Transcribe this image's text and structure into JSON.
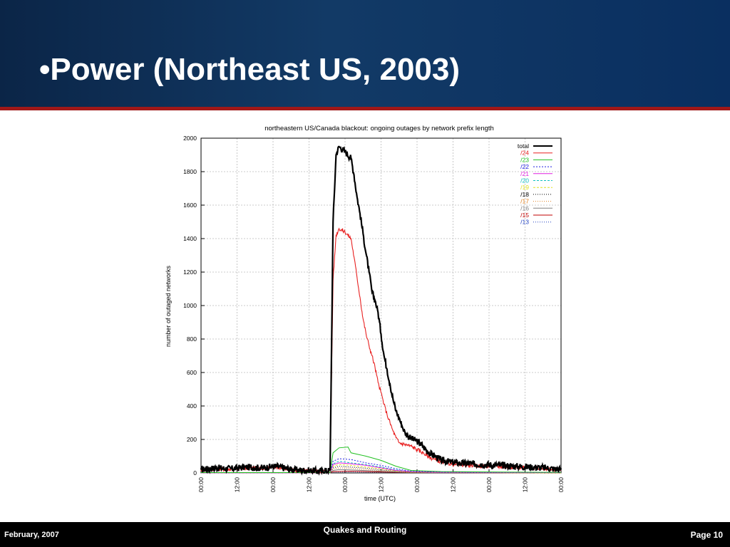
{
  "slide": {
    "title": "•Power (Northeast US, 2003)"
  },
  "footer": {
    "date": "February, 2007",
    "center": "Quakes and Routing",
    "page": "Page 10"
  },
  "chart_data": {
    "type": "line",
    "title": "northeastern US/Canada blackout: ongoing outages by network prefix length",
    "xlabel": "time (UTC)",
    "ylabel": "number of outaged networks",
    "x_ticks": [
      "00:00",
      "12:00",
      "00:00",
      "12:00",
      "00:00",
      "12:00",
      "00:00",
      "12:00",
      "00:00",
      "12:00",
      "00:00"
    ],
    "y_ticks": [
      0,
      200,
      400,
      600,
      800,
      1000,
      1200,
      1400,
      1600,
      1800,
      2000
    ],
    "xlim": [
      0,
      120
    ],
    "ylim": [
      0,
      2000
    ],
    "x_unit": "hours since first 00:00 tick",
    "grid": true,
    "legend_position": "top-right",
    "series": [
      {
        "name": "total",
        "color": "#000000",
        "dash": "",
        "width": 2.2,
        "points": [
          [
            0,
            20
          ],
          [
            5,
            30
          ],
          [
            10,
            25
          ],
          [
            15,
            35
          ],
          [
            20,
            30
          ],
          [
            25,
            40
          ],
          [
            30,
            20
          ],
          [
            35,
            15
          ],
          [
            40,
            10
          ],
          [
            43,
            15
          ],
          [
            44,
            1500
          ],
          [
            45,
            1900
          ],
          [
            46,
            1950
          ],
          [
            48,
            1920
          ],
          [
            50,
            1880
          ],
          [
            51,
            1780
          ],
          [
            52,
            1650
          ],
          [
            53,
            1550
          ],
          [
            54,
            1430
          ],
          [
            55,
            1310
          ],
          [
            56,
            1200
          ],
          [
            57,
            1080
          ],
          [
            58,
            1030
          ],
          [
            59,
            960
          ],
          [
            60,
            830
          ],
          [
            61,
            700
          ],
          [
            62,
            620
          ],
          [
            63,
            530
          ],
          [
            64,
            440
          ],
          [
            65,
            370
          ],
          [
            66,
            330
          ],
          [
            67,
            280
          ],
          [
            68,
            240
          ],
          [
            69,
            220
          ],
          [
            70,
            205
          ],
          [
            72,
            190
          ],
          [
            74,
            160
          ],
          [
            76,
            120
          ],
          [
            78,
            100
          ],
          [
            80,
            75
          ],
          [
            85,
            60
          ],
          [
            90,
            55
          ],
          [
            95,
            50
          ],
          [
            100,
            45
          ],
          [
            105,
            40
          ],
          [
            110,
            35
          ],
          [
            115,
            30
          ],
          [
            120,
            20
          ]
        ]
      },
      {
        "name": "/24",
        "color": "#e82020",
        "dash": "",
        "width": 1.1,
        "points": [
          [
            0,
            18
          ],
          [
            5,
            25
          ],
          [
            10,
            22
          ],
          [
            15,
            30
          ],
          [
            20,
            28
          ],
          [
            25,
            35
          ],
          [
            30,
            18
          ],
          [
            35,
            12
          ],
          [
            40,
            8
          ],
          [
            43,
            12
          ],
          [
            44,
            1150
          ],
          [
            45,
            1420
          ],
          [
            46,
            1460
          ],
          [
            48,
            1440
          ],
          [
            50,
            1400
          ],
          [
            51,
            1290
          ],
          [
            52,
            1170
          ],
          [
            53,
            1050
          ],
          [
            54,
            920
          ],
          [
            55,
            830
          ],
          [
            56,
            760
          ],
          [
            57,
            700
          ],
          [
            58,
            630
          ],
          [
            59,
            540
          ],
          [
            60,
            480
          ],
          [
            61,
            410
          ],
          [
            62,
            350
          ],
          [
            63,
            300
          ],
          [
            64,
            250
          ],
          [
            65,
            210
          ],
          [
            66,
            180
          ],
          [
            68,
            170
          ],
          [
            70,
            160
          ],
          [
            72,
            140
          ],
          [
            74,
            120
          ],
          [
            76,
            95
          ],
          [
            78,
            80
          ],
          [
            80,
            65
          ],
          [
            85,
            50
          ],
          [
            90,
            45
          ],
          [
            95,
            40
          ],
          [
            100,
            38
          ],
          [
            105,
            35
          ],
          [
            110,
            30
          ],
          [
            115,
            25
          ],
          [
            120,
            18
          ]
        ]
      },
      {
        "name": "/23",
        "color": "#20c020",
        "dash": "",
        "width": 1,
        "points": [
          [
            0,
            2
          ],
          [
            43,
            2
          ],
          [
            44,
            120
          ],
          [
            46,
            150
          ],
          [
            49,
            155
          ],
          [
            50,
            120
          ],
          [
            55,
            100
          ],
          [
            60,
            75
          ],
          [
            65,
            40
          ],
          [
            70,
            15
          ],
          [
            80,
            8
          ],
          [
            100,
            5
          ],
          [
            120,
            3
          ]
        ]
      },
      {
        "name": "/22",
        "color": "#2020e0",
        "dash": "2,2",
        "width": 1,
        "points": [
          [
            0,
            2
          ],
          [
            43,
            2
          ],
          [
            44,
            70
          ],
          [
            46,
            85
          ],
          [
            50,
            80
          ],
          [
            55,
            60
          ],
          [
            60,
            45
          ],
          [
            65,
            25
          ],
          [
            70,
            10
          ],
          [
            80,
            5
          ],
          [
            120,
            2
          ]
        ]
      },
      {
        "name": "/21",
        "color": "#e020e0",
        "dash": "",
        "width": 1,
        "points": [
          [
            0,
            1
          ],
          [
            43,
            1
          ],
          [
            44,
            50
          ],
          [
            46,
            60
          ],
          [
            50,
            55
          ],
          [
            55,
            45
          ],
          [
            60,
            30
          ],
          [
            65,
            15
          ],
          [
            70,
            8
          ],
          [
            80,
            4
          ],
          [
            120,
            2
          ]
        ]
      },
      {
        "name": "/20",
        "color": "#10c0c0",
        "dash": "3,2",
        "width": 1,
        "points": [
          [
            0,
            1
          ],
          [
            43,
            1
          ],
          [
            44,
            55
          ],
          [
            46,
            70
          ],
          [
            50,
            60
          ],
          [
            55,
            50
          ],
          [
            60,
            35
          ],
          [
            65,
            18
          ],
          [
            70,
            8
          ],
          [
            80,
            4
          ],
          [
            120,
            2
          ]
        ]
      },
      {
        "name": "/19",
        "color": "#e0e020",
        "dash": "3,2",
        "width": 1,
        "points": [
          [
            0,
            1
          ],
          [
            43,
            1
          ],
          [
            44,
            40
          ],
          [
            46,
            50
          ],
          [
            50,
            45
          ],
          [
            55,
            35
          ],
          [
            60,
            25
          ],
          [
            65,
            12
          ],
          [
            70,
            6
          ],
          [
            80,
            3
          ],
          [
            120,
            1
          ]
        ]
      },
      {
        "name": "/18",
        "color": "#000000",
        "dash": "1,2",
        "width": 1,
        "points": [
          [
            0,
            1
          ],
          [
            43,
            1
          ],
          [
            44,
            30
          ],
          [
            46,
            40
          ],
          [
            50,
            35
          ],
          [
            55,
            28
          ],
          [
            60,
            18
          ],
          [
            65,
            10
          ],
          [
            70,
            5
          ],
          [
            120,
            1
          ]
        ]
      },
      {
        "name": "/17",
        "color": "#e08020",
        "dash": "1,2",
        "width": 1,
        "points": [
          [
            0,
            1
          ],
          [
            43,
            1
          ],
          [
            44,
            25
          ],
          [
            46,
            30
          ],
          [
            50,
            28
          ],
          [
            55,
            20
          ],
          [
            60,
            14
          ],
          [
            65,
            8
          ],
          [
            70,
            4
          ],
          [
            120,
            1
          ]
        ]
      },
      {
        "name": "/16",
        "color": "#808080",
        "dash": "",
        "width": 1,
        "points": [
          [
            0,
            1
          ],
          [
            43,
            1
          ],
          [
            44,
            15
          ],
          [
            46,
            20
          ],
          [
            50,
            18
          ],
          [
            55,
            14
          ],
          [
            60,
            10
          ],
          [
            65,
            6
          ],
          [
            70,
            3
          ],
          [
            120,
            1
          ]
        ]
      },
      {
        "name": "/15",
        "color": "#c00000",
        "dash": "",
        "width": 1,
        "points": [
          [
            0,
            0
          ],
          [
            43,
            0
          ],
          [
            44,
            8
          ],
          [
            50,
            10
          ],
          [
            60,
            6
          ],
          [
            70,
            2
          ],
          [
            120,
            0
          ]
        ]
      },
      {
        "name": "/13",
        "color": "#2040c0",
        "dash": "1,2",
        "width": 1,
        "points": [
          [
            0,
            0
          ],
          [
            43,
            0
          ],
          [
            44,
            5
          ],
          [
            50,
            6
          ],
          [
            60,
            4
          ],
          [
            70,
            2
          ],
          [
            120,
            0
          ]
        ]
      }
    ]
  }
}
